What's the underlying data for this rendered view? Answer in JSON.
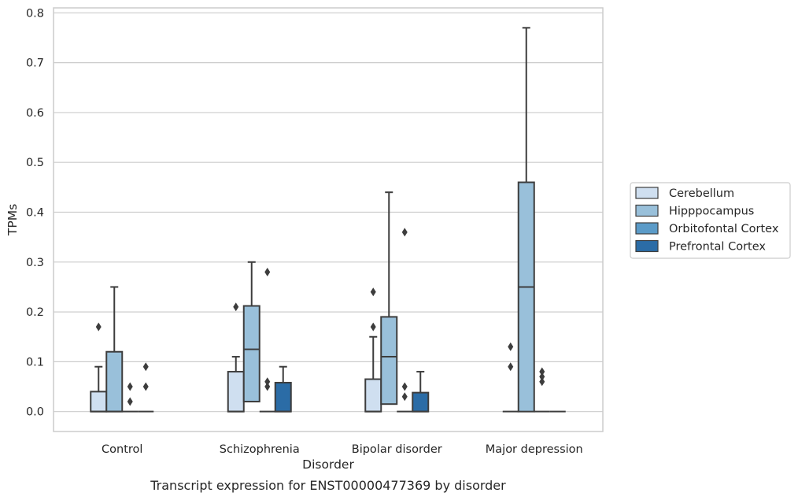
{
  "chart_data": {
    "type": "box",
    "xlabel": "Disorder",
    "ylabel": "TPMs",
    "caption": "Transcript expression for ENST00000477369 by disorder",
    "ylim": [
      -0.04,
      0.81
    ],
    "yticks": [
      "0.0",
      "0.1",
      "0.2",
      "0.3",
      "0.4",
      "0.5",
      "0.6",
      "0.7",
      "0.8"
    ],
    "categories": [
      "Control",
      "Schizophrenia",
      "Bipolar disorder",
      "Major depression"
    ],
    "grid": "horizontal",
    "legend_position": "right",
    "series": [
      {
        "name": "Cerebellum",
        "color": "#cfdff0",
        "boxes": [
          {
            "q1": 0.0,
            "median": 0.0,
            "q3": 0.04,
            "whisker_low": 0.0,
            "whisker_high": 0.09,
            "outliers": [
              0.17
            ]
          },
          {
            "q1": 0.0,
            "median": 0.0,
            "q3": 0.08,
            "whisker_low": 0.0,
            "whisker_high": 0.11,
            "outliers": [
              0.21
            ]
          },
          {
            "q1": 0.0,
            "median": 0.0,
            "q3": 0.065,
            "whisker_low": 0.0,
            "whisker_high": 0.15,
            "outliers": [
              0.17,
              0.24
            ]
          },
          {
            "q1": 0.0,
            "median": 0.0,
            "q3": 0.0,
            "whisker_low": 0.0,
            "whisker_high": 0.0,
            "outliers": [
              0.09,
              0.13
            ]
          }
        ]
      },
      {
        "name": "Hipppocampus",
        "color": "#99c0da",
        "boxes": [
          {
            "q1": 0.0,
            "median": 0.0,
            "q3": 0.12,
            "whisker_low": 0.0,
            "whisker_high": 0.25,
            "outliers": []
          },
          {
            "q1": 0.02,
            "median": 0.125,
            "q3": 0.212,
            "whisker_low": 0.0,
            "whisker_high": 0.3,
            "outliers": []
          },
          {
            "q1": 0.015,
            "median": 0.11,
            "q3": 0.19,
            "whisker_low": 0.0,
            "whisker_high": 0.44,
            "outliers": []
          },
          {
            "q1": 0.0,
            "median": 0.25,
            "q3": 0.46,
            "whisker_low": 0.0,
            "whisker_high": 0.77,
            "outliers": []
          }
        ]
      },
      {
        "name": "Orbitofontal Cortex",
        "color": "#5b9bc8",
        "boxes": [
          {
            "q1": 0.0,
            "median": 0.0,
            "q3": 0.0,
            "whisker_low": 0.0,
            "whisker_high": 0.0,
            "outliers": [
              0.02,
              0.05
            ]
          },
          {
            "q1": 0.0,
            "median": 0.0,
            "q3": 0.0,
            "whisker_low": 0.0,
            "whisker_high": 0.0,
            "outliers": [
              0.05,
              0.06,
              0.28
            ]
          },
          {
            "q1": 0.0,
            "median": 0.0,
            "q3": 0.0,
            "whisker_low": 0.0,
            "whisker_high": 0.0,
            "outliers": [
              0.03,
              0.05,
              0.36
            ]
          },
          {
            "q1": 0.0,
            "median": 0.0,
            "q3": 0.0,
            "whisker_low": 0.0,
            "whisker_high": 0.0,
            "outliers": [
              0.06,
              0.07,
              0.08
            ]
          }
        ]
      },
      {
        "name": "Prefrontal Cortex",
        "color": "#2b6ca6",
        "boxes": [
          {
            "q1": 0.0,
            "median": 0.0,
            "q3": 0.0,
            "whisker_low": 0.0,
            "whisker_high": 0.0,
            "outliers": [
              0.05,
              0.09
            ]
          },
          {
            "q1": 0.0,
            "median": 0.0,
            "q3": 0.058,
            "whisker_low": 0.0,
            "whisker_high": 0.09,
            "outliers": []
          },
          {
            "q1": 0.0,
            "median": 0.0,
            "q3": 0.038,
            "whisker_low": 0.0,
            "whisker_high": 0.08,
            "outliers": []
          },
          {
            "q1": 0.0,
            "median": 0.0,
            "q3": 0.0,
            "whisker_low": 0.0,
            "whisker_high": 0.0,
            "outliers": []
          }
        ]
      }
    ]
  }
}
